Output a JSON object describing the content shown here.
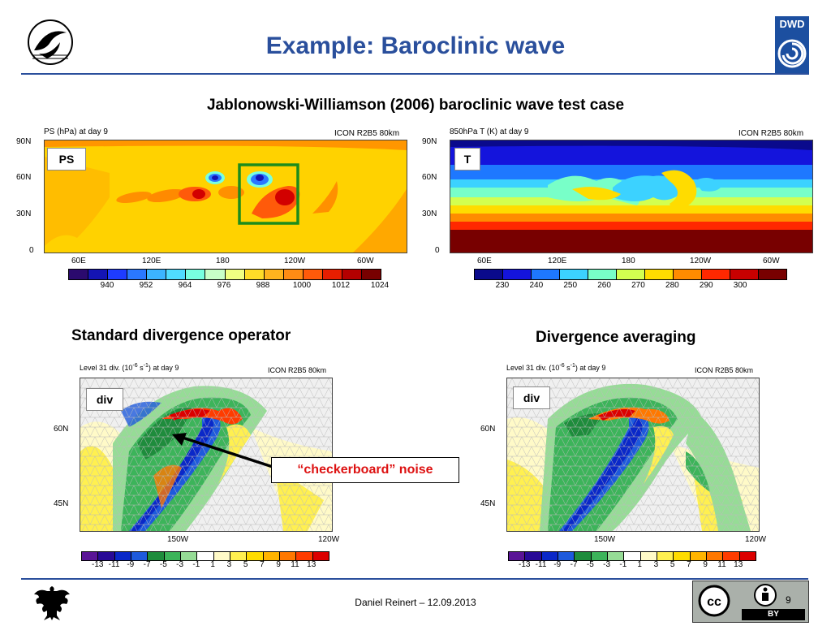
{
  "slide": {
    "title": "Example: Baroclinic wave",
    "subtitle": "Jablonowski-Williamson (2006) baroclinic wave test case",
    "footer": "Daniel Reinert – 12.09.2013",
    "page_number": "9"
  },
  "logos": {
    "dwd_text": "DWD",
    "cc_text": "BY"
  },
  "ps_panel": {
    "header_left": "PS (hPa) at day 9",
    "header_right": "ICON R2B5 80km",
    "box_label": "PS",
    "y_ticks": [
      "90N",
      "60N",
      "30N",
      "0"
    ],
    "x_ticks": [
      "60E",
      "120E",
      "180",
      "120W",
      "60W"
    ],
    "colorbar_labels": [
      "940",
      "952",
      "964",
      "976",
      "988",
      "1000",
      "1012",
      "1024"
    ],
    "colorbar_colors": [
      "#2b0a6e",
      "#1414b4",
      "#1e3cff",
      "#2a78ff",
      "#3cb4ff",
      "#50dcff",
      "#78ffe0",
      "#c8ffc8",
      "#f0ff82",
      "#ffdc28",
      "#ffb41e",
      "#ff8c14",
      "#ff5a0a",
      "#e61e00",
      "#b40000",
      "#780000"
    ]
  },
  "t_panel": {
    "header_left": "850hPa T (K) at day 9",
    "header_right": "ICON R2B5 80km",
    "box_label": "T",
    "y_ticks": [
      "90N",
      "60N",
      "30N",
      "0"
    ],
    "x_ticks": [
      "60E",
      "120E",
      "180",
      "120W",
      "60W"
    ],
    "colorbar_labels": [
      "230",
      "240",
      "250",
      "260",
      "270",
      "280",
      "290",
      "300"
    ],
    "colorbar_colors": [
      "#0a0a8c",
      "#1414dc",
      "#1e78ff",
      "#3cd2ff",
      "#78ffc8",
      "#d2ff50",
      "#ffdc00",
      "#ff8c00",
      "#ff2800",
      "#c80000",
      "#780000"
    ]
  },
  "left_div": {
    "section_title": "Standard divergence operator",
    "header_left": "Level 31 div. (10",
    "header_exp": "-6",
    "header_mid": " s",
    "header_exp2": "-1",
    "header_end": ") at day 9",
    "header_right": "ICON R2B5 80km",
    "box_label": "div",
    "y_ticks": [
      "60N",
      "45N"
    ],
    "x_ticks": [
      "150W",
      "120W"
    ],
    "colorbar_labels": [
      "-13",
      "-11",
      "-9",
      "-7",
      "-5",
      "-3",
      "-1",
      "1",
      "3",
      "5",
      "7",
      "9",
      "11",
      "13"
    ]
  },
  "right_div": {
    "section_title": "Divergence averaging",
    "header_left": "Level 31 div. (10",
    "header_exp": "-6",
    "header_mid": " s",
    "header_exp2": "-1",
    "header_end": ") at day 9",
    "header_right": "ICON R2B5 80km",
    "box_label": "div",
    "y_ticks": [
      "60N",
      "45N"
    ],
    "x_ticks": [
      "150W",
      "120W"
    ],
    "colorbar_labels": [
      "-13",
      "-11",
      "-9",
      "-7",
      "-5",
      "-3",
      "-1",
      "1",
      "3",
      "5",
      "7",
      "9",
      "11",
      "13"
    ]
  },
  "div_colorbar_colors": [
    "#5a1496",
    "#280a96",
    "#0a28c8",
    "#1e5adc",
    "#1e8c3c",
    "#3cb45a",
    "#96dc96",
    "#ffffff",
    "#fffac8",
    "#fff050",
    "#ffdc00",
    "#ffb400",
    "#ff7800",
    "#ff3c00",
    "#dc0000"
  ],
  "annotation": {
    "text": "“checkerboard” noise",
    "color": "#dd1111"
  }
}
